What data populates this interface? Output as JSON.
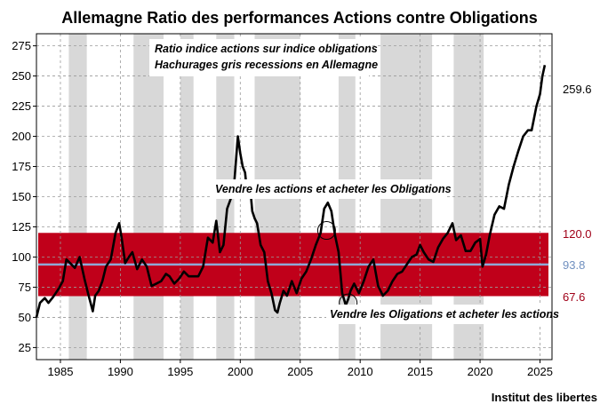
{
  "chart_data": {
    "type": "line",
    "title": "Allemagne Ratio des performances Actions contre Obligations",
    "subtitle_lines": [
      "Ratio indice actions sur indice obligations",
      "Hachurages gris recessions en Allemagne"
    ],
    "annotations": {
      "sell_stocks": "Vendre les actions et acheter les Obligations",
      "sell_bonds": "Vendre les Oligations et acheter les actions"
    },
    "credit": "Institut des libertes",
    "xlim": [
      1983.0,
      2026.0
    ],
    "ylim": [
      15,
      285
    ],
    "x_ticks": [
      1985,
      1990,
      1995,
      2000,
      2005,
      2010,
      2015,
      2020,
      2025
    ],
    "y_ticks": [
      25,
      50,
      75,
      100,
      125,
      150,
      175,
      200,
      225,
      250,
      275
    ],
    "grid": true,
    "colors": {
      "line": "#000000",
      "band": "#c0001a",
      "mean": "#8fa9d6",
      "recession": "#d8d8d8",
      "upper_label": "#a00018",
      "lower_label": "#a00018",
      "mean_label": "#6f8fbf"
    },
    "band": {
      "upper": 120.0,
      "mean": 93.8,
      "lower": 67.6
    },
    "band_labels": {
      "upper": "120.0",
      "mean": "93.8",
      "lower": "67.6"
    },
    "last_value_label": "259.6",
    "recessions": [
      [
        1985.7,
        1987.2
      ],
      [
        1991.1,
        1993.6
      ],
      [
        1995.0,
        1996.1
      ],
      [
        1998.0,
        1999.5
      ],
      [
        2001.2,
        2005.0
      ],
      [
        2008.2,
        2009.6
      ],
      [
        2011.7,
        2016.0
      ],
      [
        2017.8,
        2020.3
      ]
    ],
    "circles": [
      {
        "x": 2007.2,
        "y": 122
      },
      {
        "x": 2009.0,
        "y": 62
      }
    ],
    "series": [
      {
        "x": [
          1983.0,
          1983.3,
          1983.7,
          1984.0,
          1984.4,
          1984.8,
          1985.2,
          1985.5,
          1985.9,
          1986.2,
          1986.6,
          1987.0,
          1987.3,
          1987.7,
          1987.9,
          1988.2,
          1988.5,
          1988.8,
          1989.2,
          1989.6,
          1989.9,
          1990.1,
          1990.4,
          1990.7,
          1991.0,
          1991.4,
          1991.8,
          1992.2,
          1992.6,
          1993.0,
          1993.4,
          1993.8,
          1994.1,
          1994.5,
          1994.9,
          1995.3,
          1995.7,
          1996.1,
          1996.5,
          1996.9,
          1997.3,
          1997.7,
          1998.0,
          1998.3,
          1998.6,
          1998.9,
          1999.2,
          1999.5,
          1999.8,
          2000.0,
          2000.2,
          2000.4,
          2000.6,
          2000.8,
          2001.0,
          2001.2,
          2001.4,
          2001.7,
          2002.0,
          2002.3,
          2002.6,
          2002.9,
          2003.1,
          2003.3,
          2003.6,
          2003.9,
          2004.3,
          2004.7,
          2005.1,
          2005.5,
          2005.9,
          2006.3,
          2006.7,
          2007.0,
          2007.3,
          2007.6,
          2007.9,
          2008.2,
          2008.5,
          2008.8,
          2009.0,
          2009.2,
          2009.5,
          2009.9,
          2010.3,
          2010.7,
          2011.1,
          2011.5,
          2011.9,
          2012.3,
          2012.7,
          2013.1,
          2013.5,
          2013.9,
          2014.3,
          2014.7,
          2015.0,
          2015.3,
          2015.7,
          2016.1,
          2016.5,
          2016.9,
          2017.3,
          2017.7,
          2018.0,
          2018.4,
          2018.8,
          2019.2,
          2019.6,
          2020.0,
          2020.2,
          2020.5,
          2020.8,
          2021.2,
          2021.6,
          2022.0,
          2022.4,
          2022.8,
          2023.2,
          2023.6,
          2024.0,
          2024.3,
          2024.7,
          2025.0,
          2025.2,
          2025.4
        ],
        "y": [
          50,
          62,
          66,
          62,
          67,
          73,
          80,
          98,
          94,
          91,
          100,
          82,
          70,
          55,
          68,
          72,
          80,
          92,
          98,
          120,
          128,
          116,
          95,
          100,
          104,
          90,
          98,
          92,
          76,
          78,
          80,
          86,
          84,
          78,
          82,
          88,
          84,
          84,
          84,
          92,
          116,
          112,
          130,
          104,
          110,
          140,
          148,
          162,
          200,
          186,
          175,
          170,
          150,
          160,
          138,
          132,
          128,
          110,
          104,
          80,
          70,
          56,
          54,
          62,
          72,
          68,
          80,
          70,
          82,
          88,
          98,
          110,
          120,
          140,
          145,
          138,
          118,
          104,
          70,
          60,
          65,
          72,
          78,
          70,
          80,
          92,
          98,
          76,
          68,
          72,
          80,
          86,
          88,
          94,
          100,
          102,
          110,
          104,
          98,
          96,
          108,
          115,
          120,
          128,
          114,
          118,
          105,
          105,
          112,
          115,
          92,
          102,
          118,
          135,
          142,
          140,
          160,
          175,
          188,
          200,
          205,
          205,
          225,
          235,
          250,
          259
        ]
      }
    ]
  }
}
